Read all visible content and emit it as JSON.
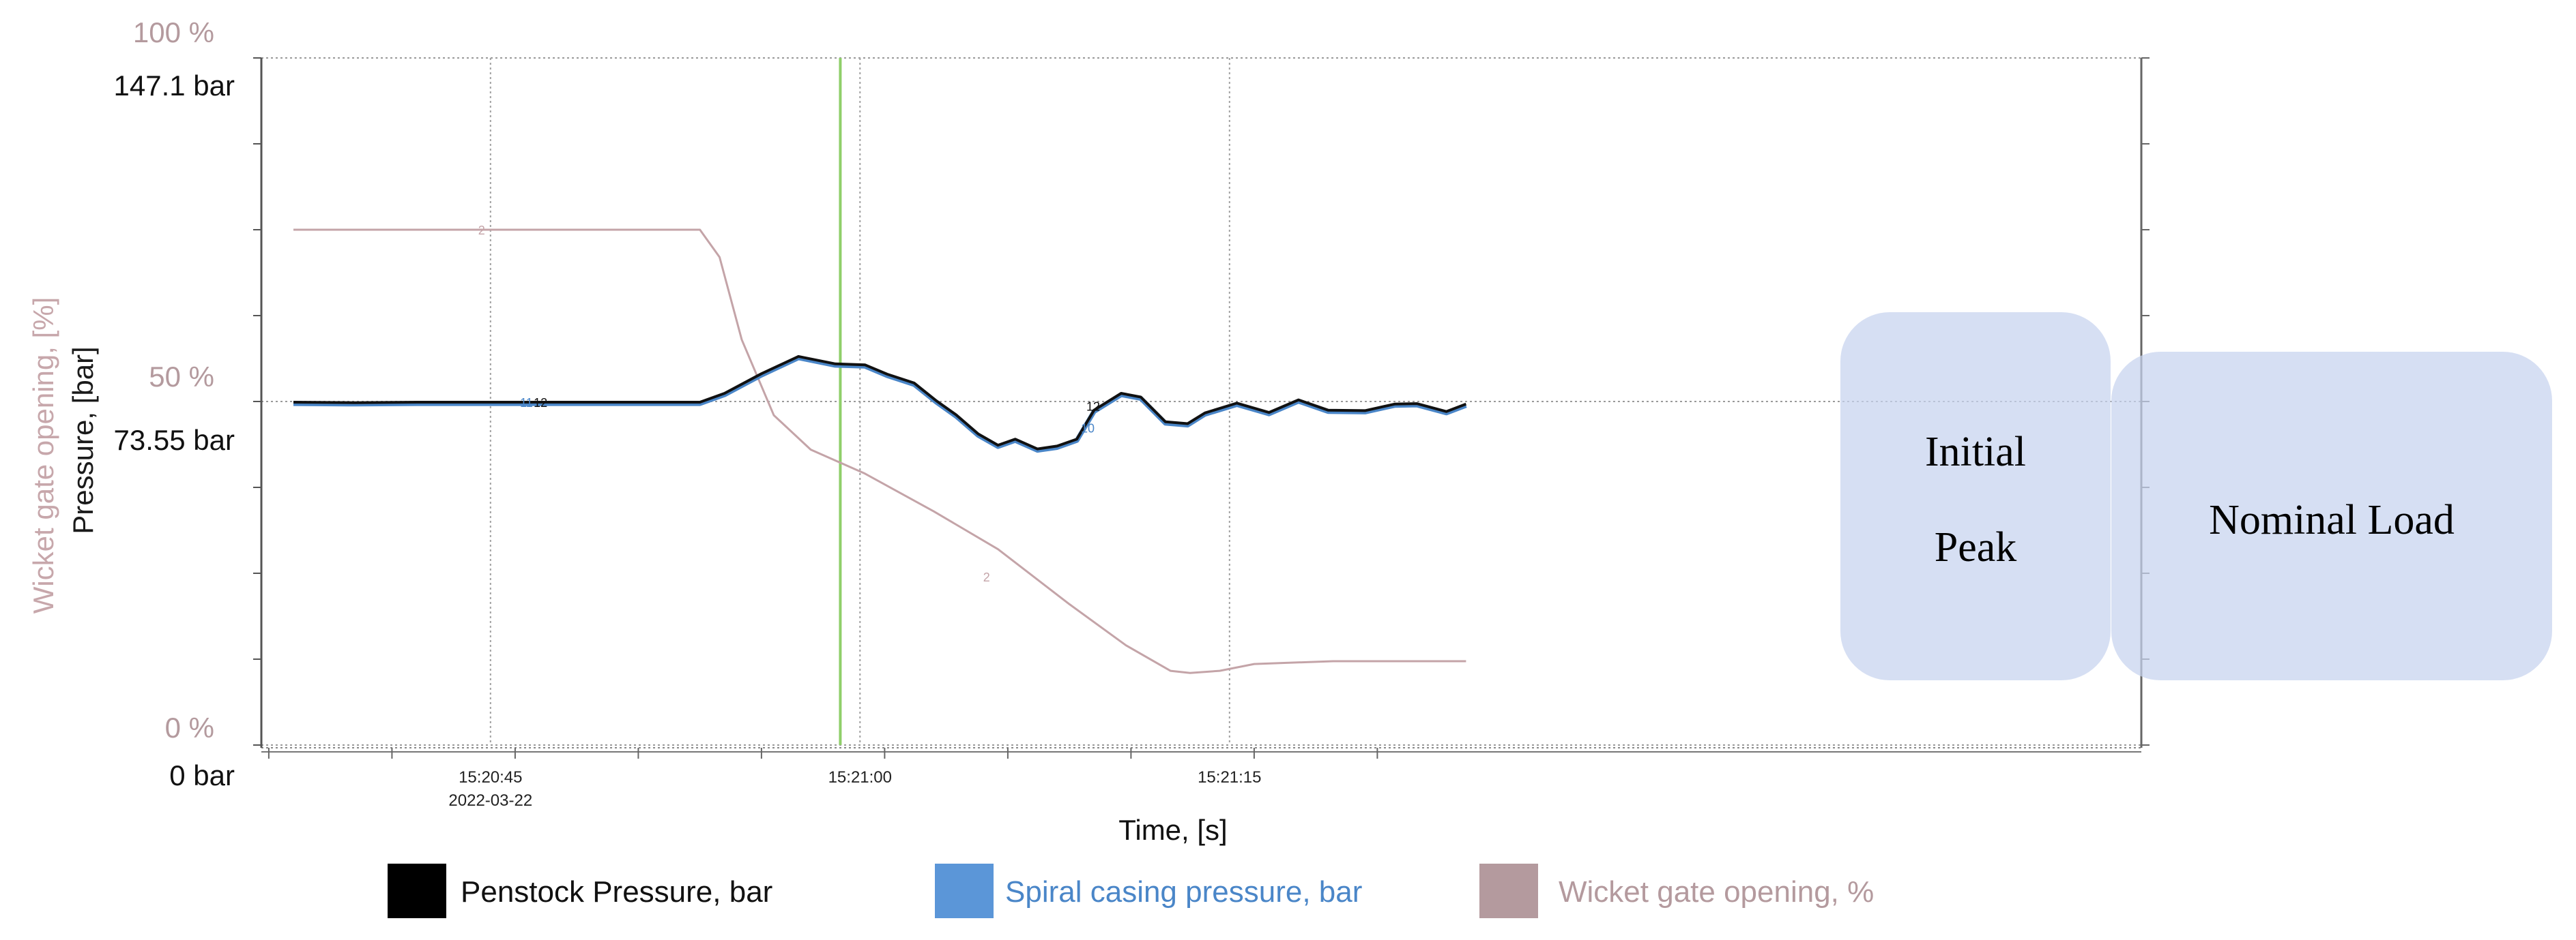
{
  "chart_data": {
    "type": "line",
    "xlabel": "Time, [s]",
    "ylabel_left_pressure": "Pressure, [bar]",
    "ylabel_left_opening": "Wicket gate opening, [%]",
    "pressure_ticks": [
      {
        "value": 0,
        "label": "0 bar"
      },
      {
        "value": 73.55,
        "label": "73.55 bar"
      },
      {
        "value": 147.1,
        "label": "147.1 bar"
      }
    ],
    "opening_ticks": [
      {
        "value": 0,
        "label": "0 %"
      },
      {
        "value": 50,
        "label": "50 %"
      },
      {
        "value": 100,
        "label": "100 %"
      }
    ],
    "pressure_ylim": [
      0,
      147.1
    ],
    "opening_ylim": [
      0,
      100
    ],
    "x_range": [
      "15:20:37",
      "15:21:23"
    ],
    "time_ticks": [
      {
        "label": "15:20:45",
        "sublabel": "2022-03-22",
        "t": 8.0
      },
      {
        "label": "15:21:00",
        "sublabel": "",
        "t": 23.0
      },
      {
        "label": "15:21:15",
        "sublabel": "",
        "t": 38.0
      }
    ],
    "grid": true,
    "event_marker_t": 22.2,
    "series": [
      {
        "name": "Penstock Pressure, bar",
        "color": "#111111",
        "x": [
          0,
          2.5,
          5,
          10,
          13.5,
          16.5,
          17.5,
          19,
          20.5,
          22,
          23.2,
          24.1,
          25.2,
          26.1,
          26.9,
          27.8,
          28.6,
          29.3,
          30.2,
          31,
          31.8,
          32.5,
          33.6,
          34.4,
          35.4,
          36.3,
          37,
          38.3,
          39.6,
          40.8,
          42,
          43.5,
          44.7,
          45.6,
          46.8,
          47.6
        ],
        "values": [
          73.4,
          73.3,
          73.4,
          73.4,
          73.4,
          73.4,
          75.3,
          79.5,
          83.2,
          81.6,
          81.4,
          79.4,
          77.5,
          73.7,
          70.7,
          66.6,
          64.2,
          65.5,
          63.4,
          64.0,
          65.5,
          71.7,
          75.3,
          74.5,
          69.2,
          68.8,
          71.1,
          73.2,
          71.2,
          73.9,
          71.7,
          71.6,
          73.0,
          73.1,
          71.4,
          73.0
        ]
      },
      {
        "name": "Spiral casing pressure, bar",
        "color": "#4a86c8",
        "x": [
          0,
          2.5,
          5,
          10,
          13.5,
          16.5,
          17.5,
          19,
          20.5,
          22,
          23.2,
          24.1,
          25.2,
          26.1,
          26.9,
          27.8,
          28.6,
          29.3,
          30.2,
          31,
          31.8,
          32.5,
          33.6,
          34.4,
          35.4,
          36.3,
          37,
          38.3,
          39.6,
          40.8,
          42,
          43.5,
          44.7,
          45.6,
          46.8,
          47.6
        ],
        "values": [
          73.1,
          73.0,
          73.1,
          73.1,
          73.1,
          73.1,
          75.0,
          79.2,
          82.9,
          81.3,
          81.1,
          79.1,
          77.2,
          73.4,
          70.4,
          66.3,
          63.9,
          65.2,
          63.1,
          63.7,
          65.2,
          71.4,
          75.0,
          74.2,
          68.9,
          68.5,
          70.8,
          72.9,
          70.9,
          73.6,
          71.4,
          71.3,
          72.7,
          72.8,
          71.1,
          72.7
        ]
      },
      {
        "name": "Wicket gate opening, %",
        "color": "#c4a4a8",
        "x": [
          0,
          16.5,
          17.3,
          18.2,
          19.5,
          21,
          23.2,
          26,
          28.6,
          31.5,
          33.8,
          35.6,
          36.4,
          37.6,
          39,
          42.2,
          47.6
        ],
        "values": [
          75,
          75,
          71,
          59,
          48,
          43,
          39.5,
          34,
          28.5,
          20.5,
          14.5,
          10.8,
          10.5,
          10.8,
          11.8,
          12.2,
          12.2
        ]
      }
    ],
    "annotations": [
      "Initial Peak",
      "Nominal Load"
    ],
    "legend_position": "bottom"
  },
  "text": {
    "pct_ticks": [
      "100 %",
      "50 %",
      "0 %"
    ],
    "bar_ticks": [
      "147.1 bar",
      "73.55 bar",
      "0 bar"
    ],
    "series_marks": {
      "penstock": "12",
      "spiral": "11",
      "spiral_b": "10",
      "penstock_b": "12",
      "opening": "2",
      "opening_b": "2"
    },
    "callouts": {
      "initial_line1": "Initial",
      "initial_line2": "Peak",
      "nominal": "Nominal Load"
    }
  },
  "legend": [
    {
      "label": "Penstock Pressure, bar",
      "color": "#000000",
      "text_color": "#111111"
    },
    {
      "label": "Spiral casing pressure, bar",
      "color": "#5b96d8",
      "text_color": "#4a86c8"
    },
    {
      "label": "Wicket gate opening, %",
      "color": "#b49a9e",
      "text_color": "#b49a9e"
    }
  ]
}
